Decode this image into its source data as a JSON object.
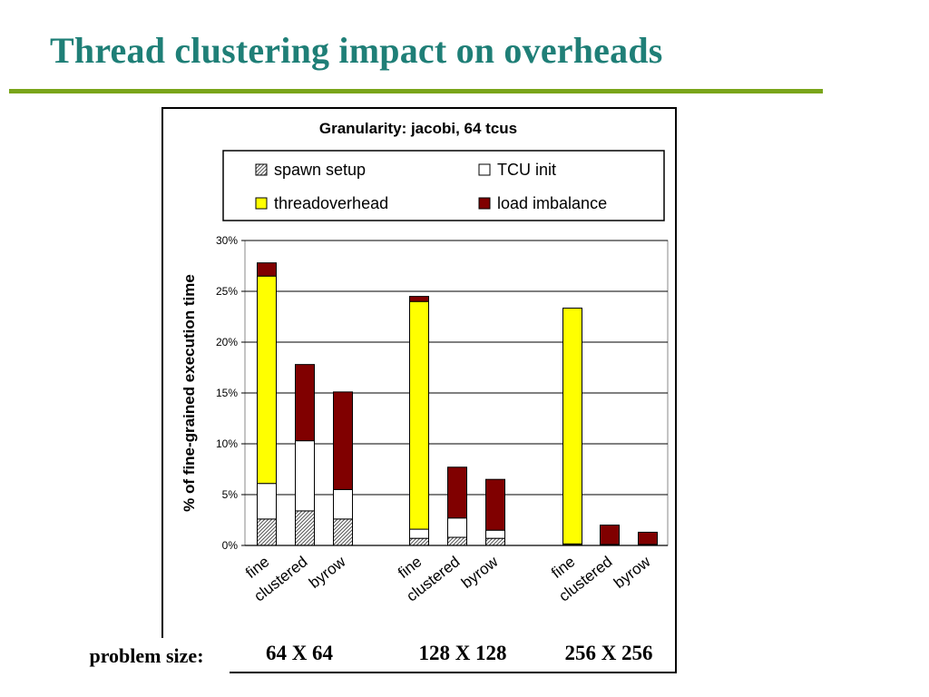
{
  "slide": {
    "title": "Thread clustering impact on overheads",
    "problem_size_label": "problem size:",
    "size_labels": [
      "64 X 64",
      "128 X 128",
      "256 X 256"
    ]
  },
  "colors": {
    "title": "#1f7f77",
    "rule": "#7aa51a",
    "spawn_setup": "hatched gray",
    "tcu_init": "#ffffff",
    "threadoverhead": "#ffff00",
    "load_imbalance": "#800000"
  },
  "chart_data": {
    "type": "bar",
    "stacked": true,
    "title": "Granularity: jacobi, 64 tcus",
    "xlabel": "",
    "ylabel": "% of fine-grained execution time",
    "ylim": [
      0,
      30
    ],
    "yticks": [
      "0%",
      "5%",
      "10%",
      "15%",
      "20%",
      "25%",
      "30%"
    ],
    "grid": true,
    "legend_position": "top",
    "groups": [
      "64 X 64",
      "128 X 128",
      "256 X 256"
    ],
    "categories": [
      "fine",
      "clustered",
      "byrow",
      "fine",
      "clustered",
      "byrow",
      "fine",
      "clustered",
      "byrow"
    ],
    "series": [
      {
        "name": "spawn setup",
        "values": [
          2.6,
          3.4,
          2.6,
          0.7,
          0.8,
          0.7,
          0.1,
          0.05,
          0.05
        ]
      },
      {
        "name": "TCU init",
        "values": [
          3.5,
          6.9,
          2.9,
          0.9,
          1.9,
          0.8,
          0.05,
          0.05,
          0.05
        ]
      },
      {
        "name": "threadoverhead",
        "values": [
          20.4,
          0,
          0,
          22.4,
          0,
          0,
          23.2,
          0,
          0
        ]
      },
      {
        "name": "load imbalance",
        "values": [
          1.3,
          7.5,
          9.6,
          0.5,
          5.0,
          5.0,
          0,
          1.9,
          1.2
        ]
      }
    ]
  }
}
